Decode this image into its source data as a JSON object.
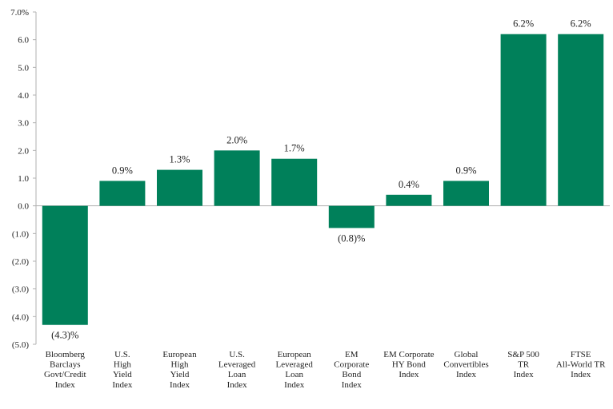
{
  "chart_data": {
    "type": "bar",
    "categories": [
      "Bloomberg Barclays Govt/Credit Index",
      "U.S. High Yield Index",
      "European High Yield Index",
      "U.S. Leveraged Loan Index",
      "European Leveraged Loan Index",
      "EM Corporate Bond Index",
      "EM Corporate HY Bond Index",
      "Global Convertibles Index",
      "S&P 500 TR Index",
      "FTSE All-World TR Index"
    ],
    "category_lines": [
      [
        "Bloomberg",
        "Barclays",
        "Govt/Credit",
        "Index"
      ],
      [
        "U.S.",
        "High",
        "Yield",
        "Index"
      ],
      [
        "European",
        "High",
        "Yield",
        "Index"
      ],
      [
        "U.S.",
        "Leveraged",
        "Loan",
        "Index"
      ],
      [
        "European",
        "Leveraged",
        "Loan",
        "Index"
      ],
      [
        "EM",
        "Corporate",
        "Bond",
        "Index"
      ],
      [
        "EM Corporate",
        "HY Bond",
        "Index"
      ],
      [
        "Global",
        "Convertibles",
        "Index"
      ],
      [
        "S&P 500",
        "TR",
        "Index"
      ],
      [
        "FTSE",
        "All-World TR",
        "Index"
      ]
    ],
    "values": [
      -4.3,
      0.9,
      1.3,
      2.0,
      1.7,
      -0.8,
      0.4,
      0.9,
      6.2,
      6.2
    ],
    "data_labels": [
      "(4.3)%",
      "0.9%",
      "1.3%",
      "2.0%",
      "1.7%",
      "(0.8)%",
      "0.4%",
      "0.9%",
      "6.2%",
      "6.2%"
    ],
    "y_ticks": [
      7,
      6,
      5,
      4,
      3,
      2,
      1,
      0,
      -1,
      -2,
      -3,
      -4,
      -5
    ],
    "y_tick_labels": [
      "7.0%",
      "6.0",
      "5.0",
      "4.0",
      "3.0",
      "2.0",
      "1.0",
      "0.0",
      "(1.0)",
      "(2.0)",
      "(3.0)",
      "(4.0)",
      "(5.0)"
    ],
    "ylim": [
      -5,
      7
    ],
    "title": "",
    "xlabel": "",
    "ylabel": "",
    "grid": false,
    "bar_color": "#00805a",
    "axis_color": "#b0b0b0"
  }
}
